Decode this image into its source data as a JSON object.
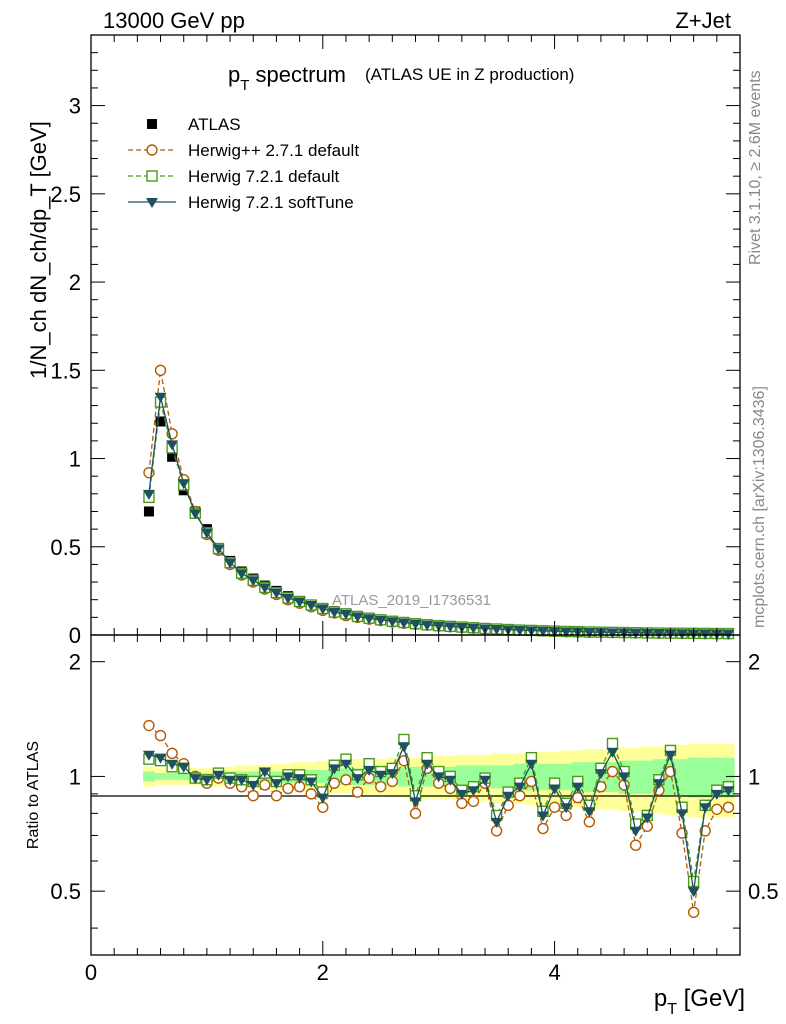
{
  "header": {
    "energy_label": "13000 GeV pp",
    "process_label": "Z+Jet"
  },
  "side_labels": {
    "rivet": "Rivet 3.1.10, ≥ 2.6M events",
    "mcplots": "mcplots.cern.ch [arXiv:1306.3436]"
  },
  "chart_data": [
    {
      "type": "line",
      "panel": "main",
      "title": "p_T spectrum",
      "title_main": "p",
      "title_sub": "T",
      "title_rest": " spectrum",
      "subtitle": "(ATLAS UE in Z production)",
      "xlabel": "p_T [GeV]",
      "xlabel_main": "p",
      "xlabel_sub": "T",
      "xlabel_rest": " [GeV]",
      "ylabel": "1/N_ch dN_ch/dp_T [GeV]",
      "analysis_label": "ATLAS_2019_I1736531",
      "xlim": [
        0,
        5.6
      ],
      "ylim": [
        0,
        3.4
      ],
      "xticks": [
        0,
        2,
        4
      ],
      "yticks": [
        0,
        0.5,
        1,
        1.5,
        2,
        2.5,
        3
      ],
      "ytick_labels": [
        "0",
        "0.5",
        "1",
        "1.5",
        "2",
        "2.5",
        "3"
      ],
      "legend_position": "top-left",
      "x": [
        0.5,
        0.6,
        0.7,
        0.8,
        0.9,
        1.0,
        1.1,
        1.2,
        1.3,
        1.4,
        1.5,
        1.6,
        1.7,
        1.8,
        1.9,
        2.0,
        2.1,
        2.2,
        2.3,
        2.4,
        2.5,
        2.6,
        2.7,
        2.8,
        2.9,
        3.0,
        3.1,
        3.2,
        3.3,
        3.4,
        3.5,
        3.6,
        3.7,
        3.8,
        3.9,
        4.0,
        4.1,
        4.2,
        4.3,
        4.4,
        4.5,
        4.6,
        4.7,
        4.8,
        4.9,
        5.0,
        5.1,
        5.2,
        5.3,
        5.4,
        5.5
      ],
      "series": [
        {
          "name": "ATLAS",
          "style": "data",
          "color": "#000000",
          "marker": "square-filled",
          "values": [
            0.7,
            1.21,
            1.01,
            0.82,
            0.7,
            0.6,
            0.49,
            0.42,
            0.36,
            0.32,
            0.28,
            0.25,
            0.22,
            0.19,
            0.17,
            0.15,
            0.135,
            0.12,
            0.108,
            0.097,
            0.088,
            0.08,
            0.073,
            0.066,
            0.06,
            0.055,
            0.05,
            0.046,
            0.042,
            0.038,
            0.035,
            0.032,
            0.029,
            0.027,
            0.025,
            0.023,
            0.021,
            0.019,
            0.018,
            0.016,
            0.015,
            0.014,
            0.013,
            0.012,
            0.011,
            0.01,
            0.0095,
            0.009,
            0.0085,
            0.008,
            0.0075
          ]
        },
        {
          "name": "Herwig++ 2.7.1 default",
          "style": "dashed",
          "color": "#b35a00",
          "marker": "circle-open",
          "values": [
            0.92,
            1.5,
            1.14,
            0.88,
            0.7,
            0.57,
            0.48,
            0.4,
            0.34,
            0.3,
            0.26,
            0.23,
            0.2,
            0.18,
            0.16,
            0.14,
            0.125,
            0.11,
            0.1,
            0.09,
            0.082,
            0.074,
            0.067,
            0.061,
            0.056,
            0.051,
            0.047,
            0.043,
            0.039,
            0.036,
            0.033,
            0.03,
            0.027,
            0.025,
            0.023,
            0.021,
            0.019,
            0.018,
            0.016,
            0.015,
            0.014,
            0.013,
            0.012,
            0.011,
            0.01,
            0.0095,
            0.009,
            0.0085,
            0.008,
            0.0075,
            0.007
          ]
        },
        {
          "name": "Herwig 7.2.1 default",
          "style": "dashed",
          "color": "#4a9a1a",
          "marker": "square-open",
          "values": [
            0.78,
            1.32,
            1.06,
            0.85,
            0.69,
            0.58,
            0.49,
            0.41,
            0.35,
            0.31,
            0.27,
            0.24,
            0.21,
            0.19,
            0.17,
            0.15,
            0.13,
            0.12,
            0.105,
            0.095,
            0.086,
            0.078,
            0.071,
            0.064,
            0.058,
            0.053,
            0.049,
            0.045,
            0.041,
            0.037,
            0.034,
            0.031,
            0.028,
            0.026,
            0.024,
            0.022,
            0.02,
            0.019,
            0.017,
            0.016,
            0.015,
            0.014,
            0.013,
            0.012,
            0.011,
            0.0105,
            0.01,
            0.0095,
            0.009,
            0.0085,
            0.008
          ]
        },
        {
          "name": "Herwig 7.2.1 softTune",
          "style": "solid",
          "color": "#1f5060",
          "marker": "triangle-down-filled",
          "values": [
            0.8,
            1.35,
            1.08,
            0.86,
            0.69,
            0.58,
            0.49,
            0.41,
            0.35,
            0.31,
            0.27,
            0.24,
            0.21,
            0.19,
            0.17,
            0.15,
            0.13,
            0.12,
            0.105,
            0.095,
            0.086,
            0.078,
            0.071,
            0.064,
            0.058,
            0.053,
            0.049,
            0.045,
            0.041,
            0.037,
            0.034,
            0.031,
            0.028,
            0.026,
            0.024,
            0.022,
            0.02,
            0.019,
            0.017,
            0.016,
            0.015,
            0.014,
            0.013,
            0.012,
            0.011,
            0.0105,
            0.01,
            0.0095,
            0.009,
            0.0085,
            0.008
          ]
        }
      ]
    },
    {
      "type": "line",
      "panel": "ratio",
      "ylabel": "Ratio to ATLAS",
      "xlim": [
        0,
        5.6
      ],
      "ylim": [
        0.34,
        2.35
      ],
      "yscale": "log",
      "xticks": [
        0,
        2,
        4
      ],
      "xtick_labels": [
        "0",
        "2",
        "4"
      ],
      "yticks": [
        0.5,
        1,
        2
      ],
      "ytick_labels": [
        "0.5",
        "1",
        "2"
      ],
      "band_inner_color": "#99ff99",
      "band_outer_color": "#ffff99",
      "x": [
        0.5,
        0.6,
        0.7,
        0.8,
        0.9,
        1.0,
        1.1,
        1.2,
        1.3,
        1.4,
        1.5,
        1.6,
        1.7,
        1.8,
        1.9,
        2.0,
        2.1,
        2.2,
        2.3,
        2.4,
        2.5,
        2.6,
        2.7,
        2.8,
        2.9,
        3.0,
        3.1,
        3.2,
        3.3,
        3.4,
        3.5,
        3.6,
        3.7,
        3.8,
        3.9,
        4.0,
        4.1,
        4.2,
        4.3,
        4.4,
        4.5,
        4.6,
        4.7,
        4.8,
        4.9,
        5.0,
        5.1,
        5.2,
        5.3,
        5.4,
        5.5
      ],
      "band_inner_halfwidth": [
        0.03,
        0.02,
        0.02,
        0.02,
        0.02,
        0.02,
        0.02,
        0.03,
        0.03,
        0.03,
        0.03,
        0.03,
        0.04,
        0.04,
        0.04,
        0.04,
        0.04,
        0.05,
        0.05,
        0.05,
        0.05,
        0.05,
        0.06,
        0.06,
        0.06,
        0.06,
        0.06,
        0.07,
        0.07,
        0.07,
        0.07,
        0.07,
        0.08,
        0.08,
        0.08,
        0.08,
        0.08,
        0.09,
        0.09,
        0.09,
        0.09,
        0.1,
        0.1,
        0.1,
        0.11,
        0.11,
        0.11,
        0.12,
        0.12,
        0.12,
        0.12
      ],
      "band_outer_halfwidth": [
        0.06,
        0.05,
        0.05,
        0.05,
        0.05,
        0.05,
        0.06,
        0.06,
        0.07,
        0.07,
        0.07,
        0.08,
        0.08,
        0.09,
        0.09,
        0.1,
        0.1,
        0.1,
        0.11,
        0.11,
        0.11,
        0.12,
        0.12,
        0.12,
        0.13,
        0.13,
        0.13,
        0.14,
        0.14,
        0.14,
        0.15,
        0.15,
        0.15,
        0.16,
        0.16,
        0.16,
        0.17,
        0.17,
        0.18,
        0.18,
        0.18,
        0.19,
        0.19,
        0.2,
        0.2,
        0.21,
        0.21,
        0.22,
        0.22,
        0.22,
        0.22
      ],
      "series": [
        {
          "name": "Herwig++ 2.7.1 default",
          "style": "dashed",
          "color": "#b35a00",
          "marker": "circle-open",
          "values": [
            1.36,
            1.28,
            1.15,
            1.08,
            1.0,
            0.96,
            0.99,
            0.96,
            0.94,
            0.89,
            0.95,
            0.89,
            0.93,
            0.94,
            0.9,
            0.83,
            0.96,
            0.98,
            0.91,
            0.99,
            0.94,
            0.97,
            1.1,
            0.8,
            1.05,
            0.96,
            0.93,
            0.85,
            0.86,
            0.96,
            0.72,
            0.84,
            0.89,
            0.97,
            0.73,
            0.83,
            0.79,
            0.88,
            0.76,
            0.94,
            1.03,
            0.95,
            0.66,
            0.74,
            0.92,
            1.03,
            0.71,
            0.44,
            0.72,
            0.82,
            0.83
          ]
        },
        {
          "name": "Herwig 7.2.1 default",
          "style": "dashed",
          "color": "#4a9a1a",
          "marker": "square-open",
          "values": [
            1.11,
            1.1,
            1.06,
            1.05,
            0.99,
            0.98,
            1.02,
            0.99,
            0.98,
            0.97,
            1.02,
            0.97,
            1.01,
            1.01,
            0.98,
            0.91,
            1.07,
            1.11,
            1.01,
            1.08,
            1.03,
            1.05,
            1.25,
            0.89,
            1.12,
            1.03,
            1.0,
            0.92,
            0.94,
            0.99,
            0.79,
            0.91,
            0.96,
            1.12,
            0.81,
            0.96,
            0.85,
            0.97,
            0.84,
            1.05,
            1.22,
            1.03,
            0.75,
            0.79,
            0.98,
            1.17,
            0.83,
            0.53,
            0.84,
            0.92,
            0.94
          ]
        },
        {
          "name": "Herwig 7.2.1 softTune",
          "style": "solid",
          "color": "#1f5060",
          "marker": "triangle-down-filled",
          "values": [
            1.14,
            1.12,
            1.08,
            1.06,
            0.99,
            0.98,
            1.01,
            0.98,
            0.98,
            0.95,
            1.03,
            0.96,
            1.0,
            0.99,
            0.97,
            0.88,
            1.05,
            1.08,
            0.99,
            1.04,
            1.01,
            1.02,
            1.2,
            0.86,
            1.08,
            1.0,
            0.98,
            0.9,
            0.92,
            0.98,
            0.76,
            0.89,
            0.94,
            1.08,
            0.79,
            0.93,
            0.83,
            0.94,
            0.81,
            1.02,
            1.16,
            1.0,
            0.72,
            0.78,
            0.96,
            1.14,
            0.8,
            0.5,
            0.83,
            0.9,
            0.92
          ]
        }
      ]
    }
  ]
}
